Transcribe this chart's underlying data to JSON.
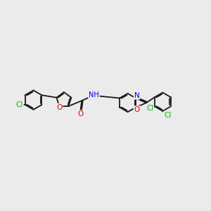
{
  "bg_color": "#ebebeb",
  "bond_color": "#1a1a1a",
  "cl_color": "#00bb00",
  "o_color": "#dd0000",
  "n_color": "#0000ee",
  "bond_width": 1.3,
  "font_size": 7.5,
  "figsize": [
    3.0,
    3.0
  ],
  "dpi": 100,
  "xlim": [
    -5.0,
    6.2
  ],
  "ylim": [
    -2.2,
    2.2
  ]
}
